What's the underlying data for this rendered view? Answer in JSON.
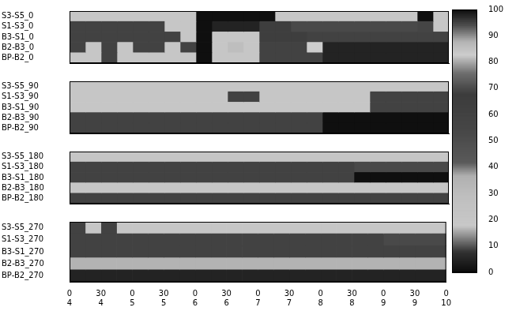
{
  "chart_data": {
    "type": "heatmap",
    "xlim": [
      4,
      10
    ],
    "xticks": [
      {
        "value": 4,
        "label": "0\n4"
      },
      {
        "value": 4.5,
        "label": "30\n4"
      },
      {
        "value": 5,
        "label": "0\n5"
      },
      {
        "value": 5.5,
        "label": "30\n5"
      },
      {
        "value": 6,
        "label": "0\n6"
      },
      {
        "value": 6.5,
        "label": "30\n6"
      },
      {
        "value": 7,
        "label": "0\n7"
      },
      {
        "value": 7.5,
        "label": "30\n7"
      },
      {
        "value": 8,
        "label": "0\n8"
      },
      {
        "value": 8.5,
        "label": "30\n8"
      },
      {
        "value": 9,
        "label": "0\n9"
      },
      {
        "value": 9.5,
        "label": "30\n9"
      },
      {
        "value": 10,
        "label": "0\n10"
      }
    ],
    "bins": [
      4,
      4.25,
      4.5,
      4.75,
      5,
      5.25,
      5.5,
      5.75,
      6,
      6.25,
      6.5,
      6.75,
      7,
      7.25,
      7.5,
      7.75,
      8,
      8.25,
      8.5,
      8.75,
      9,
      9.25,
      9.5,
      9.75,
      10
    ],
    "panels": [
      {
        "rows": [
          "S3-S5_0",
          "S1-S3_0",
          "B3-S1_0",
          "B2-B3_0",
          "BP-B2_0"
        ],
        "cells": [
          [
            20,
            20,
            20,
            20,
            20,
            20,
            20,
            20,
            100,
            100,
            100,
            100,
            100,
            20,
            20,
            20,
            20,
            20,
            20,
            20,
            20,
            20,
            100,
            20
          ],
          [
            60,
            60,
            60,
            60,
            60,
            60,
            20,
            20,
            100,
            5,
            5,
            5,
            65,
            65,
            70,
            70,
            70,
            70,
            70,
            70,
            70,
            70,
            95,
            20
          ],
          [
            60,
            60,
            60,
            60,
            60,
            60,
            60,
            20,
            100,
            20,
            20,
            20,
            65,
            65,
            65,
            60,
            60,
            60,
            60,
            60,
            60,
            60,
            60,
            60
          ],
          [
            60,
            20,
            60,
            20,
            60,
            60,
            20,
            60,
            100,
            20,
            30,
            20,
            60,
            60,
            60,
            83,
            5,
            5,
            5,
            5,
            5,
            5,
            5,
            5
          ],
          [
            20,
            20,
            60,
            20,
            20,
            20,
            20,
            20,
            100,
            20,
            20,
            20,
            60,
            60,
            60,
            60,
            5,
            5,
            5,
            5,
            5,
            5,
            5,
            5
          ]
        ]
      },
      {
        "rows": [
          "S3-S5_90",
          "S1-S3_90",
          "B3-S1_90",
          "B2-B3_90",
          "BP-B2_90"
        ],
        "cells": [
          [
            20,
            20,
            20,
            20,
            20,
            20,
            20,
            20,
            20,
            20,
            20,
            20,
            20,
            20,
            20,
            20,
            20,
            20,
            20,
            20,
            20,
            20,
            20,
            20
          ],
          [
            20,
            20,
            20,
            20,
            20,
            20,
            20,
            20,
            20,
            20,
            60,
            60,
            20,
            20,
            20,
            20,
            20,
            20,
            20,
            60,
            60,
            60,
            60,
            60
          ],
          [
            20,
            20,
            20,
            20,
            20,
            20,
            20,
            20,
            20,
            20,
            20,
            20,
            20,
            20,
            20,
            20,
            20,
            20,
            20,
            60,
            60,
            60,
            60,
            60
          ],
          [
            60,
            60,
            60,
            60,
            60,
            60,
            60,
            60,
            60,
            60,
            60,
            60,
            60,
            60,
            60,
            60,
            100,
            100,
            100,
            100,
            100,
            100,
            100,
            100
          ],
          [
            60,
            60,
            60,
            60,
            60,
            60,
            60,
            60,
            60,
            60,
            60,
            60,
            60,
            60,
            60,
            60,
            100,
            100,
            100,
            100,
            100,
            100,
            100,
            100
          ]
        ]
      },
      {
        "rows": [
          "S3-S5_180",
          "S1-S3_180",
          "B3-S1_180",
          "B2-B3_180",
          "BP-B2_180"
        ],
        "cells": [
          [
            20,
            20,
            20,
            20,
            20,
            20,
            20,
            20,
            20,
            20,
            20,
            20,
            20,
            20,
            20,
            20,
            20,
            20,
            20,
            20,
            20,
            20,
            20,
            20
          ],
          [
            60,
            60,
            60,
            60,
            60,
            60,
            60,
            60,
            60,
            60,
            60,
            60,
            60,
            60,
            60,
            60,
            60,
            60,
            70,
            70,
            70,
            70,
            70,
            70
          ],
          [
            60,
            60,
            60,
            60,
            60,
            60,
            60,
            60,
            60,
            60,
            60,
            60,
            60,
            60,
            60,
            60,
            60,
            60,
            100,
            100,
            100,
            100,
            100,
            100
          ],
          [
            20,
            20,
            20,
            20,
            20,
            20,
            20,
            20,
            20,
            20,
            20,
            20,
            20,
            20,
            20,
            20,
            20,
            20,
            20,
            20,
            20,
            20,
            20,
            20
          ],
          [
            60,
            60,
            60,
            60,
            60,
            60,
            60,
            60,
            60,
            60,
            60,
            60,
            60,
            60,
            60,
            60,
            60,
            60,
            60,
            60,
            60,
            60,
            60,
            60
          ]
        ]
      },
      {
        "rows": [
          "S3-S5_270",
          "S1-S3_270",
          "B3-S1_270",
          "B2-B3_270",
          "BP-B2_270"
        ],
        "cells": [
          [
            60,
            20,
            60,
            20,
            20,
            20,
            20,
            20,
            20,
            20,
            20,
            20,
            20,
            20,
            20,
            20,
            20,
            20,
            20,
            20,
            20,
            20,
            20,
            20
          ],
          [
            60,
            60,
            60,
            60,
            60,
            60,
            60,
            60,
            60,
            60,
            60,
            60,
            60,
            60,
            60,
            60,
            60,
            60,
            60,
            60,
            70,
            70,
            70,
            70
          ],
          [
            60,
            60,
            60,
            60,
            60,
            60,
            60,
            60,
            60,
            60,
            60,
            60,
            60,
            60,
            60,
            60,
            60,
            60,
            60,
            60,
            60,
            60,
            60,
            60
          ],
          [
            35,
            35,
            35,
            35,
            35,
            35,
            35,
            35,
            35,
            35,
            35,
            35,
            35,
            35,
            35,
            35,
            35,
            35,
            35,
            35,
            35,
            35,
            35,
            35
          ],
          [
            5,
            5,
            5,
            5,
            5,
            5,
            5,
            5,
            5,
            5,
            5,
            5,
            5,
            5,
            5,
            5,
            5,
            5,
            5,
            5,
            5,
            5,
            5,
            5
          ]
        ]
      }
    ],
    "colorbar": {
      "range": [
        0,
        100
      ],
      "ticks": [
        0,
        10,
        20,
        30,
        40,
        50,
        60,
        70,
        80,
        90,
        100
      ]
    }
  }
}
